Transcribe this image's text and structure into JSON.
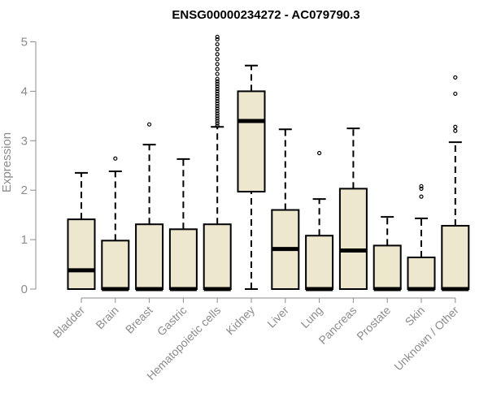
{
  "chart_data": {
    "type": "boxplot",
    "title": "ENSG00000234272 - AC079790.3",
    "xlabel": "",
    "ylabel": "Expression",
    "ylim": [
      0,
      5.2
    ],
    "yticks": [
      0,
      1,
      2,
      3,
      4,
      5
    ],
    "grid": false,
    "legend": "none",
    "box_fill": "#ede7cd",
    "box_stroke": "#000000",
    "axis_color": "#8c8c8c",
    "categories": [
      "Bladder",
      "Brain",
      "Breast",
      "Gastric",
      "Hematopoietic cells",
      "Kidney",
      "Liver",
      "Lung",
      "Pancreas",
      "Prostate",
      "Skin",
      "Unknown / Other"
    ],
    "boxes": [
      {
        "whisker_low": 0,
        "q1": 0,
        "median": 0.38,
        "q3": 1.41,
        "whisker_high": 2.35,
        "outliers": []
      },
      {
        "whisker_low": 0,
        "q1": 0,
        "median": 0,
        "q3": 0.98,
        "whisker_high": 2.38,
        "outliers": [
          2.64
        ]
      },
      {
        "whisker_low": 0,
        "q1": 0,
        "median": 0,
        "q3": 1.31,
        "whisker_high": 2.92,
        "outliers": [
          3.33
        ]
      },
      {
        "whisker_low": 0,
        "q1": 0,
        "median": 0,
        "q3": 1.21,
        "whisker_high": 2.63,
        "outliers": []
      },
      {
        "whisker_low": 0,
        "q1": 0,
        "median": 0,
        "q3": 1.31,
        "whisker_high": 3.28,
        "outliers": [
          3.3,
          3.35,
          3.4,
          3.45,
          3.5,
          3.55,
          3.6,
          3.65,
          3.7,
          3.75,
          3.8,
          3.85,
          3.9,
          3.95,
          4.0,
          4.05,
          4.1,
          4.15,
          4.2,
          4.25,
          4.35,
          4.45,
          4.55,
          4.65,
          4.75,
          4.85,
          4.95,
          5.05,
          5.1
        ]
      },
      {
        "whisker_low": 0,
        "q1": 1.97,
        "median": 3.4,
        "q3": 4.0,
        "whisker_high": 4.52,
        "outliers": []
      },
      {
        "whisker_low": 0,
        "q1": 0,
        "median": 0.81,
        "q3": 1.6,
        "whisker_high": 3.23,
        "outliers": []
      },
      {
        "whisker_low": 0,
        "q1": 0,
        "median": 0,
        "q3": 1.08,
        "whisker_high": 1.82,
        "outliers": [
          2.75
        ]
      },
      {
        "whisker_low": 0,
        "q1": 0,
        "median": 0.78,
        "q3": 2.03,
        "whisker_high": 3.25,
        "outliers": []
      },
      {
        "whisker_low": 0,
        "q1": 0,
        "median": 0,
        "q3": 0.88,
        "whisker_high": 1.46,
        "outliers": []
      },
      {
        "whisker_low": 0,
        "q1": 0,
        "median": 0,
        "q3": 0.64,
        "whisker_high": 1.43,
        "outliers": [
          1.87,
          2.03,
          2.08
        ]
      },
      {
        "whisker_low": 0,
        "q1": 0,
        "median": 0,
        "q3": 1.28,
        "whisker_high": 2.97,
        "outliers": [
          3.2,
          3.28,
          3.95,
          4.28
        ]
      }
    ]
  }
}
